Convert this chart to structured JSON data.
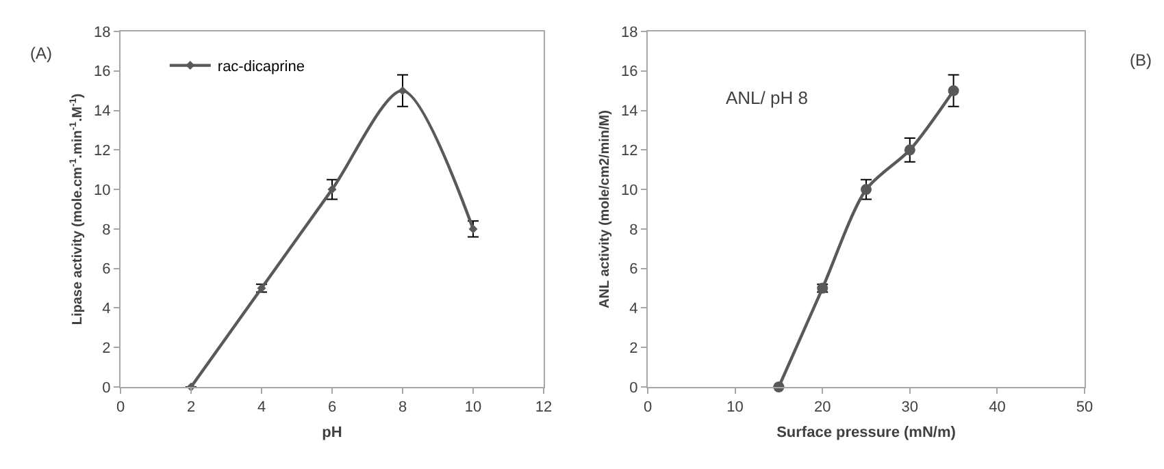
{
  "chart_data": [
    {
      "type": "line",
      "xlabel": "pH",
      "ylabel": "Lipase activity (mole.cm$^{-1}$.min$^{-1}$.M$^{-1}$)",
      "annotations": [
        "(A)"
      ],
      "x": [
        2,
        4,
        6,
        8,
        10
      ],
      "series": [
        {
          "name": "rac-dicaprine",
          "color": "#595959",
          "values": [
            0,
            5,
            10,
            15,
            8
          ],
          "errors": [
            null,
            0.2,
            0.5,
            0.8,
            0.4
          ]
        }
      ],
      "xlim": [
        0,
        12
      ],
      "xticks": [
        0,
        2,
        4,
        6,
        8,
        10,
        12
      ],
      "ylim": [
        0,
        18
      ],
      "yticks": [
        0,
        2,
        4,
        6,
        8,
        10,
        12,
        14,
        16,
        18
      ],
      "legend": "top left",
      "marker": "diamond",
      "line_style": "solid"
    },
    {
      "type": "line",
      "xlabel": "Surface pressure (mN/m)",
      "ylabel": "ANL activity (mole/cm2/min/M)",
      "annotations": [
        "(B)",
        "ANL/ pH 8"
      ],
      "x": [
        15,
        20,
        25,
        30,
        35
      ],
      "series": [
        {
          "color": "#595959",
          "values": [
            0,
            5,
            10,
            12,
            15
          ],
          "errors": [
            null,
            0.2,
            0.5,
            0.6,
            0.8
          ]
        }
      ],
      "xlim": [
        0,
        50
      ],
      "xticks": [
        0,
        10,
        20,
        30,
        40,
        50
      ],
      "ylim": [
        0,
        18
      ],
      "yticks": [
        0,
        2,
        4,
        6,
        8,
        10,
        12,
        14,
        16,
        18
      ],
      "legend": false,
      "marker": "circle",
      "line_style": "solid"
    }
  ]
}
